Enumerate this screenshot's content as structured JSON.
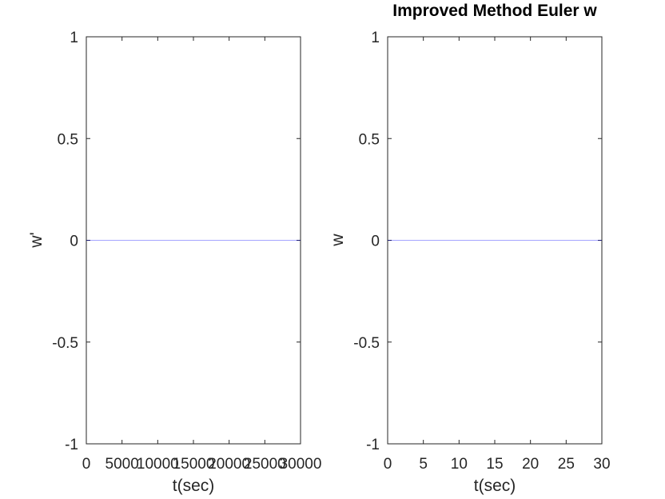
{
  "chart_data": [
    {
      "type": "line",
      "title": "",
      "xlabel": "t(sec)",
      "ylabel": "w'",
      "xlim": [
        0,
        30000
      ],
      "ylim": [
        -1,
        1
      ],
      "xticks": [
        0,
        5000,
        10000,
        15000,
        20000,
        25000,
        30000
      ],
      "xtick_labels": [
        "0",
        "5000",
        "10000",
        "15000",
        "20000",
        "25000",
        "30000"
      ],
      "yticks": [
        -1,
        -0.5,
        0,
        0.5,
        1
      ],
      "ytick_labels": [
        "-1",
        "-0.5",
        "0",
        "0.5",
        "1"
      ],
      "grid": false,
      "series": [
        {
          "color": "#0000ff",
          "x": [
            0,
            30000
          ],
          "y": [
            0,
            0
          ]
        }
      ]
    },
    {
      "type": "line",
      "title": "Improved Method Euler w",
      "xlabel": "t(sec)",
      "ylabel": "w",
      "xlim": [
        0,
        30
      ],
      "ylim": [
        -1,
        1
      ],
      "xticks": [
        0,
        5,
        10,
        15,
        20,
        25,
        30
      ],
      "xtick_labels": [
        "0",
        "5",
        "10",
        "15",
        "20",
        "25",
        "30"
      ],
      "yticks": [
        -1,
        -0.5,
        0,
        0.5,
        1
      ],
      "ytick_labels": [
        "-1",
        "-0.5",
        "0",
        "0.5",
        "1"
      ],
      "grid": false,
      "series": [
        {
          "color": "#0000ff",
          "x": [
            0,
            30
          ],
          "y": [
            0,
            0
          ]
        }
      ]
    }
  ]
}
